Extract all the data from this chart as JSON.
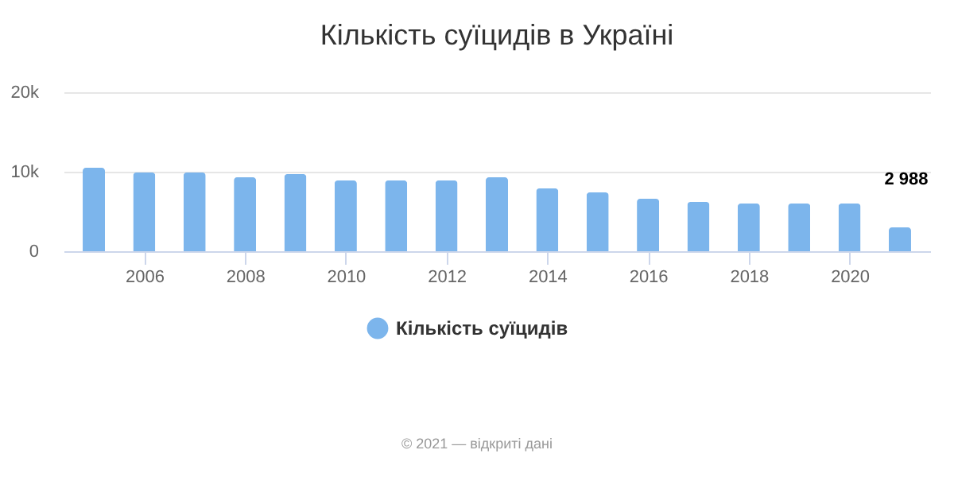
{
  "chart_data": {
    "type": "bar",
    "title": "Кількість суїцидів в Україні",
    "x": [
      2005,
      2006,
      2007,
      2008,
      2009,
      2010,
      2011,
      2012,
      2013,
      2014,
      2015,
      2016,
      2017,
      2018,
      2019,
      2020,
      2021
    ],
    "series": [
      {
        "name": "Кількість суїцидів",
        "color": "#7cb5ec",
        "values": [
          10500,
          9900,
          9900,
          9300,
          9700,
          8900,
          8900,
          8900,
          9300,
          7900,
          7400,
          6600,
          6200,
          6000,
          6000,
          6000,
          2988
        ],
        "value_labels": [
          null,
          null,
          null,
          null,
          null,
          null,
          null,
          null,
          null,
          null,
          null,
          null,
          null,
          null,
          null,
          null,
          "2 988"
        ]
      }
    ],
    "xlim": [
      2004.4,
      2021.6
    ],
    "xticks": [
      2006,
      2008,
      2010,
      2012,
      2014,
      2016,
      2018,
      2020
    ],
    "ylim": [
      0,
      20000
    ],
    "yticks": [
      0,
      {
        "value": 10000,
        "label": "10k"
      },
      {
        "value": 20000,
        "label": "20k"
      }
    ],
    "grid": "y",
    "legend": "bottom",
    "annotations": [
      "© 2021 — відкриті дані"
    ]
  }
}
